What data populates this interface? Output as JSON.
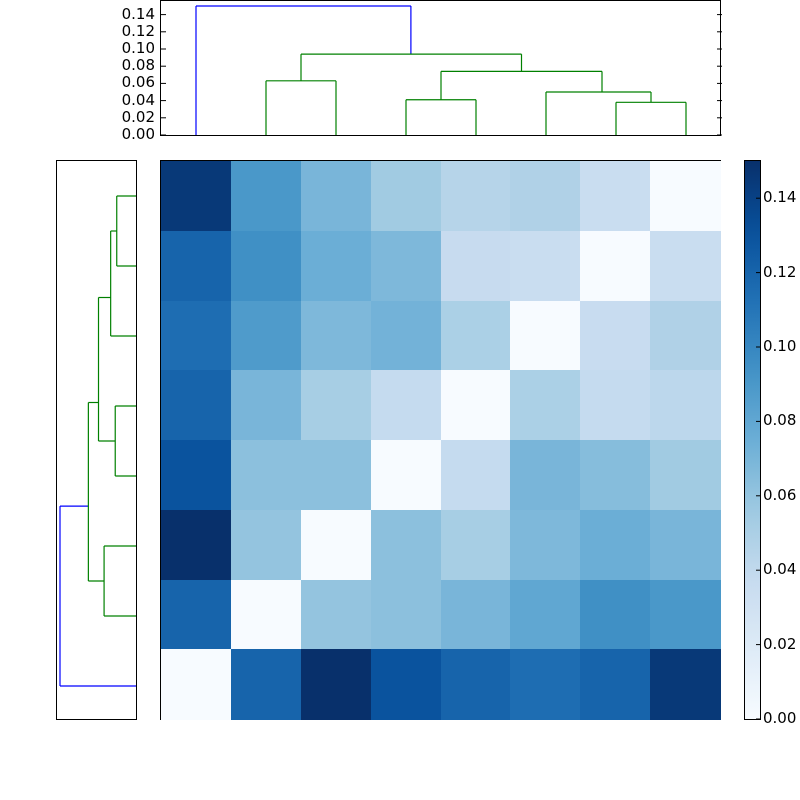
{
  "chart_data": [
    {
      "type": "dendrogram",
      "name": "top-dendrogram",
      "orientation": "top",
      "ylim": [
        0,
        0.155
      ],
      "yticks": [
        "0.00",
        "0.02",
        "0.04",
        "0.06",
        "0.08",
        "0.10",
        "0.12",
        "0.14"
      ],
      "leaves_count": 8,
      "links": [
        {
          "color": "#0000ff",
          "left_x": 0,
          "right_x": 3.07,
          "height": 0.15
        },
        {
          "color": "#008000",
          "left_x": 1.5,
          "right_x": 4.65,
          "height": 0.094
        },
        {
          "color": "#008000",
          "left_x": 1,
          "right_x": 2,
          "height": 0.063
        },
        {
          "color": "#008000",
          "left_x": 3.5,
          "right_x": 5.8,
          "height": 0.074
        },
        {
          "color": "#008000",
          "left_x": 3,
          "right_x": 4,
          "height": 0.041
        },
        {
          "color": "#008000",
          "left_x": 5,
          "right_x": 6.5,
          "height": 0.05
        },
        {
          "color": "#008000",
          "left_x": 6,
          "right_x": 7,
          "height": 0.038
        }
      ]
    },
    {
      "type": "dendrogram",
      "name": "left-dendrogram",
      "orientation": "left",
      "leaves_count": 8,
      "links": [
        {
          "color": "#0000ff",
          "top_y": 4.43,
          "bottom_y": 7.5,
          "depth": 0.15
        },
        {
          "color": "#008000",
          "top_y": 2.95,
          "bottom_y": 6,
          "depth": 0.094
        },
        {
          "color": "#008000",
          "top_y": 1.45,
          "bottom_y": 4,
          "depth": 0.074
        },
        {
          "color": "#008000",
          "top_y": 0.5,
          "bottom_y": 2.5,
          "depth": 0.05
        },
        {
          "color": "#008000",
          "top_y": 0,
          "bottom_y": 1,
          "depth": 0.038
        },
        {
          "color": "#008000",
          "top_y": 3,
          "bottom_y": 4.98,
          "depth": 0.041
        },
        {
          "color": "#008000",
          "top_y": 5.5,
          "bottom_y": 6.5,
          "depth": 0.063
        }
      ]
    },
    {
      "type": "heatmap",
      "name": "distance-matrix",
      "colormap": "Blues",
      "vmin": 0.0,
      "vmax": 0.15,
      "rows": 8,
      "cols": 8,
      "values": [
        [
          0.145,
          0.09,
          0.07,
          0.055,
          0.045,
          0.048,
          0.035,
          0.0
        ],
        [
          0.12,
          0.095,
          0.075,
          0.068,
          0.037,
          0.035,
          0.0,
          0.035
        ],
        [
          0.115,
          0.088,
          0.068,
          0.072,
          0.05,
          0.0,
          0.036,
          0.048
        ],
        [
          0.12,
          0.07,
          0.052,
          0.038,
          0.0,
          0.05,
          0.038,
          0.042
        ],
        [
          0.13,
          0.063,
          0.063,
          0.0,
          0.038,
          0.07,
          0.065,
          0.055
        ],
        [
          0.15,
          0.06,
          0.0,
          0.063,
          0.052,
          0.068,
          0.075,
          0.07
        ],
        [
          0.12,
          0.0,
          0.06,
          0.063,
          0.07,
          0.08,
          0.095,
          0.09
        ],
        [
          0.0,
          0.12,
          0.15,
          0.13,
          0.12,
          0.115,
          0.12,
          0.145
        ]
      ],
      "colorbar": {
        "ticks": [
          "0.00",
          "0.02",
          "0.04",
          "0.06",
          "0.08",
          "0.10",
          "0.12",
          "0.14"
        ],
        "range": [
          0,
          0.15
        ]
      }
    }
  ]
}
